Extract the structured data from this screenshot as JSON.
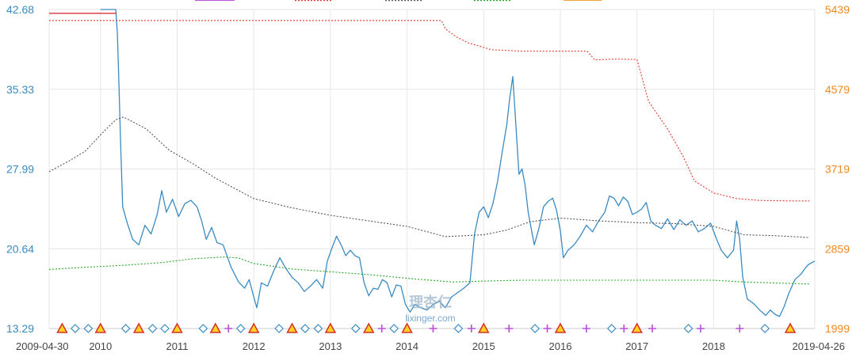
{
  "chart_data": {
    "type": "line",
    "x_start": "2009-04-30",
    "x_end": "2019-04-26",
    "x_tick_labels": [
      "2009-04-30",
      "2010",
      "2011",
      "2012",
      "2013",
      "2014",
      "2015",
      "2016",
      "2017",
      "2018",
      "2019-04-26"
    ],
    "y_left": {
      "ticks": [
        "42.68",
        "35.33",
        "27.99",
        "20.64",
        "13.29"
      ],
      "min": 13.29,
      "max": 42.68
    },
    "y_right": {
      "ticks": [
        "5439",
        "4579",
        "3719",
        "2859",
        "1999"
      ],
      "min": 1999,
      "max": 5439
    },
    "grid": true,
    "legend": {
      "position": "top",
      "entries": [
        "",
        "",
        "",
        "",
        ""
      ]
    },
    "colors": {
      "main": "#3a8bc2",
      "red_solid": "#d9313a",
      "red_dotted": "#e23a2e",
      "gray_dotted": "#555555",
      "green_dotted": "#2aa52a",
      "legend_purple": "#b84fd6",
      "legend_orange": "#f4a23a",
      "left_axis": "#3a8bc2",
      "right_axis": "#f08a1e"
    },
    "series": [
      {
        "style": "solid",
        "color": "#3a8bc2",
        "axis": "left",
        "points": [
          [
            2010.0,
            42.68
          ],
          [
            2010.2,
            42.68
          ],
          [
            2010.22,
            40.5
          ],
          [
            2010.24,
            36.0
          ],
          [
            2010.26,
            31.0
          ],
          [
            2010.29,
            24.5
          ],
          [
            2010.35,
            23.0
          ],
          [
            2010.42,
            21.5
          ],
          [
            2010.5,
            21.0
          ],
          [
            2010.58,
            22.8
          ],
          [
            2010.66,
            22.0
          ],
          [
            2010.74,
            23.8
          ],
          [
            2010.8,
            26.0
          ],
          [
            2010.86,
            24.0
          ],
          [
            2010.94,
            25.2
          ],
          [
            2011.02,
            23.6
          ],
          [
            2011.1,
            24.8
          ],
          [
            2011.18,
            25.1
          ],
          [
            2011.26,
            24.5
          ],
          [
            2011.32,
            23.2
          ],
          [
            2011.38,
            21.5
          ],
          [
            2011.45,
            22.6
          ],
          [
            2011.52,
            21.2
          ],
          [
            2011.6,
            21.0
          ],
          [
            2011.7,
            19.0
          ],
          [
            2011.8,
            17.6
          ],
          [
            2011.88,
            17.0
          ],
          [
            2011.94,
            17.8
          ],
          [
            2012.0,
            16.2
          ],
          [
            2012.04,
            15.2
          ],
          [
            2012.1,
            17.5
          ],
          [
            2012.18,
            17.2
          ],
          [
            2012.26,
            18.6
          ],
          [
            2012.34,
            19.8
          ],
          [
            2012.42,
            18.8
          ],
          [
            2012.5,
            18.0
          ],
          [
            2012.58,
            17.5
          ],
          [
            2012.66,
            16.7
          ],
          [
            2012.74,
            17.2
          ],
          [
            2012.82,
            17.8
          ],
          [
            2012.9,
            17.0
          ],
          [
            2012.96,
            19.5
          ],
          [
            2013.02,
            20.7
          ],
          [
            2013.08,
            21.8
          ],
          [
            2013.14,
            21.0
          ],
          [
            2013.2,
            20.0
          ],
          [
            2013.26,
            20.5
          ],
          [
            2013.32,
            20.0
          ],
          [
            2013.38,
            19.8
          ],
          [
            2013.44,
            17.5
          ],
          [
            2013.5,
            16.3
          ],
          [
            2013.56,
            17.0
          ],
          [
            2013.62,
            16.9
          ],
          [
            2013.68,
            17.8
          ],
          [
            2013.74,
            17.5
          ],
          [
            2013.8,
            16.2
          ],
          [
            2013.86,
            17.3
          ],
          [
            2013.92,
            17.2
          ],
          [
            2013.98,
            15.5
          ],
          [
            2014.04,
            14.8
          ],
          [
            2014.1,
            15.5
          ],
          [
            2014.18,
            15.2
          ],
          [
            2014.26,
            15.0
          ],
          [
            2014.34,
            15.5
          ],
          [
            2014.42,
            15.8
          ],
          [
            2014.5,
            15.2
          ],
          [
            2014.58,
            16.2
          ],
          [
            2014.66,
            16.6
          ],
          [
            2014.74,
            17.0
          ],
          [
            2014.82,
            17.5
          ],
          [
            2014.88,
            22.0
          ],
          [
            2014.94,
            24.0
          ],
          [
            2015.0,
            24.5
          ],
          [
            2015.06,
            23.5
          ],
          [
            2015.12,
            24.8
          ],
          [
            2015.18,
            26.8
          ],
          [
            2015.24,
            29.5
          ],
          [
            2015.3,
            32.0
          ],
          [
            2015.34,
            34.5
          ],
          [
            2015.38,
            36.5
          ],
          [
            2015.42,
            32.0
          ],
          [
            2015.46,
            27.5
          ],
          [
            2015.5,
            28.0
          ],
          [
            2015.54,
            26.5
          ],
          [
            2015.58,
            24.0
          ],
          [
            2015.62,
            22.5
          ],
          [
            2015.66,
            21.0
          ],
          [
            2015.72,
            22.5
          ],
          [
            2015.78,
            24.5
          ],
          [
            2015.84,
            25.0
          ],
          [
            2015.9,
            25.3
          ],
          [
            2015.95,
            24.2
          ],
          [
            2016.0,
            22.3
          ],
          [
            2016.04,
            19.8
          ],
          [
            2016.1,
            20.5
          ],
          [
            2016.18,
            21.0
          ],
          [
            2016.26,
            21.8
          ],
          [
            2016.34,
            22.8
          ],
          [
            2016.42,
            22.2
          ],
          [
            2016.5,
            23.2
          ],
          [
            2016.58,
            24.0
          ],
          [
            2016.64,
            25.5
          ],
          [
            2016.7,
            25.3
          ],
          [
            2016.76,
            24.6
          ],
          [
            2016.82,
            25.4
          ],
          [
            2016.88,
            25.0
          ],
          [
            2016.94,
            23.8
          ],
          [
            2017.0,
            24.0
          ],
          [
            2017.06,
            24.3
          ],
          [
            2017.12,
            24.9
          ],
          [
            2017.18,
            23.2
          ],
          [
            2017.24,
            22.8
          ],
          [
            2017.32,
            22.5
          ],
          [
            2017.4,
            23.4
          ],
          [
            2017.48,
            22.4
          ],
          [
            2017.56,
            23.3
          ],
          [
            2017.64,
            22.8
          ],
          [
            2017.72,
            23.2
          ],
          [
            2017.8,
            22.2
          ],
          [
            2017.88,
            22.5
          ],
          [
            2017.96,
            23.0
          ],
          [
            2018.04,
            21.5
          ],
          [
            2018.1,
            20.5
          ],
          [
            2018.18,
            19.8
          ],
          [
            2018.26,
            20.5
          ],
          [
            2018.3,
            23.2
          ],
          [
            2018.34,
            21.5
          ],
          [
            2018.38,
            18.0
          ],
          [
            2018.44,
            16.0
          ],
          [
            2018.52,
            15.6
          ],
          [
            2018.6,
            15.0
          ],
          [
            2018.68,
            14.5
          ],
          [
            2018.74,
            15.0
          ],
          [
            2018.8,
            14.6
          ],
          [
            2018.86,
            14.4
          ],
          [
            2018.92,
            15.3
          ],
          [
            2018.98,
            16.5
          ],
          [
            2019.06,
            17.8
          ],
          [
            2019.14,
            18.3
          ],
          [
            2019.2,
            18.9
          ],
          [
            2019.24,
            19.2
          ],
          [
            2019.32,
            19.5
          ]
        ]
      },
      {
        "style": "solid",
        "color": "#d9313a",
        "axis": "right",
        "points": [
          [
            2009.33,
            5398
          ],
          [
            2010.21,
            5398
          ]
        ]
      },
      {
        "style": "dotted",
        "color": "#e23a2e",
        "axis": "right",
        "points": [
          [
            2009.33,
            5320
          ],
          [
            2013.5,
            5320
          ],
          [
            2014.45,
            5320
          ],
          [
            2014.5,
            5230
          ],
          [
            2014.65,
            5140
          ],
          [
            2014.8,
            5080
          ],
          [
            2015.1,
            5005
          ],
          [
            2015.5,
            4990
          ],
          [
            2016.0,
            4990
          ],
          [
            2016.35,
            4990
          ],
          [
            2016.45,
            4895
          ],
          [
            2016.7,
            4905
          ],
          [
            2017.0,
            4900
          ],
          [
            2017.15,
            4450
          ],
          [
            2017.4,
            4150
          ],
          [
            2017.6,
            3860
          ],
          [
            2017.75,
            3590
          ],
          [
            2018.0,
            3460
          ],
          [
            2018.3,
            3400
          ],
          [
            2018.6,
            3380
          ],
          [
            2019.0,
            3375
          ],
          [
            2019.25,
            3375
          ]
        ]
      },
      {
        "style": "dotted",
        "color": "#555555",
        "axis": "right",
        "points": [
          [
            2009.33,
            3690
          ],
          [
            2009.6,
            3810
          ],
          [
            2009.8,
            3910
          ],
          [
            2010.05,
            4130
          ],
          [
            2010.2,
            4250
          ],
          [
            2010.3,
            4280
          ],
          [
            2010.6,
            4150
          ],
          [
            2010.9,
            3920
          ],
          [
            2011.2,
            3780
          ],
          [
            2011.5,
            3620
          ],
          [
            2012.0,
            3400
          ],
          [
            2012.5,
            3300
          ],
          [
            2013.0,
            3220
          ],
          [
            2013.5,
            3160
          ],
          [
            2014.0,
            3100
          ],
          [
            2014.5,
            2990
          ],
          [
            2015.0,
            3010
          ],
          [
            2015.3,
            3060
          ],
          [
            2015.6,
            3150
          ],
          [
            2016.0,
            3190
          ],
          [
            2016.5,
            3160
          ],
          [
            2017.0,
            3140
          ],
          [
            2017.5,
            3130
          ],
          [
            2018.0,
            3100
          ],
          [
            2018.4,
            3010
          ],
          [
            2018.8,
            3000
          ],
          [
            2019.25,
            2980
          ]
        ]
      },
      {
        "style": "dotted",
        "color": "#2aa52a",
        "axis": "right",
        "points": [
          [
            2009.33,
            2636
          ],
          [
            2009.8,
            2660
          ],
          [
            2010.3,
            2680
          ],
          [
            2010.8,
            2710
          ],
          [
            2011.2,
            2750
          ],
          [
            2011.6,
            2770
          ],
          [
            2011.8,
            2760
          ],
          [
            2012.0,
            2700
          ],
          [
            2012.5,
            2640
          ],
          [
            2013.0,
            2610
          ],
          [
            2013.5,
            2580
          ],
          [
            2014.0,
            2540
          ],
          [
            2014.6,
            2500
          ],
          [
            2015.0,
            2510
          ],
          [
            2015.5,
            2520
          ],
          [
            2016.0,
            2520
          ],
          [
            2016.5,
            2520
          ],
          [
            2017.0,
            2520
          ],
          [
            2017.5,
            2520
          ],
          [
            2018.0,
            2520
          ],
          [
            2018.4,
            2500
          ],
          [
            2018.8,
            2490
          ],
          [
            2019.25,
            2480
          ]
        ]
      }
    ],
    "markers": [
      {
        "x": 2009.5,
        "type": "triangle"
      },
      {
        "x": 2009.67,
        "type": "diamond"
      },
      {
        "x": 2009.84,
        "type": "diamond"
      },
      {
        "x": 2010.0,
        "type": "triangle"
      },
      {
        "x": 2010.33,
        "type": "diamond"
      },
      {
        "x": 2010.5,
        "type": "triangle"
      },
      {
        "x": 2010.68,
        "type": "diamond"
      },
      {
        "x": 2010.84,
        "type": "diamond"
      },
      {
        "x": 2011.0,
        "type": "triangle"
      },
      {
        "x": 2011.34,
        "type": "diamond"
      },
      {
        "x": 2011.5,
        "type": "triangle"
      },
      {
        "x": 2011.67,
        "type": "plus"
      },
      {
        "x": 2011.83,
        "type": "diamond"
      },
      {
        "x": 2012.0,
        "type": "triangle"
      },
      {
        "x": 2012.33,
        "type": "diamond"
      },
      {
        "x": 2012.5,
        "type": "triangle"
      },
      {
        "x": 2012.67,
        "type": "diamond"
      },
      {
        "x": 2012.84,
        "type": "diamond"
      },
      {
        "x": 2013.0,
        "type": "triangle"
      },
      {
        "x": 2013.33,
        "type": "diamond"
      },
      {
        "x": 2013.5,
        "type": "triangle"
      },
      {
        "x": 2013.67,
        "type": "plus"
      },
      {
        "x": 2013.83,
        "type": "diamond"
      },
      {
        "x": 2014.0,
        "type": "triangle"
      },
      {
        "x": 2014.34,
        "type": "plus"
      },
      {
        "x": 2014.67,
        "type": "diamond"
      },
      {
        "x": 2014.84,
        "type": "plus"
      },
      {
        "x": 2015.0,
        "type": "triangle"
      },
      {
        "x": 2015.33,
        "type": "plus"
      },
      {
        "x": 2015.67,
        "type": "diamond"
      },
      {
        "x": 2015.83,
        "type": "plus"
      },
      {
        "x": 2016.0,
        "type": "triangle"
      },
      {
        "x": 2016.34,
        "type": "plus"
      },
      {
        "x": 2016.67,
        "type": "diamond"
      },
      {
        "x": 2016.83,
        "type": "plus"
      },
      {
        "x": 2017.0,
        "type": "triangle"
      },
      {
        "x": 2017.2,
        "type": "plus"
      },
      {
        "x": 2017.67,
        "type": "diamond"
      },
      {
        "x": 2017.83,
        "type": "plus"
      },
      {
        "x": 2018.34,
        "type": "plus"
      },
      {
        "x": 2018.67,
        "type": "diamond"
      },
      {
        "x": 2019.0,
        "type": "triangle"
      }
    ]
  },
  "watermark": {
    "title": "理杏仁",
    "url": "lixinger.com"
  }
}
